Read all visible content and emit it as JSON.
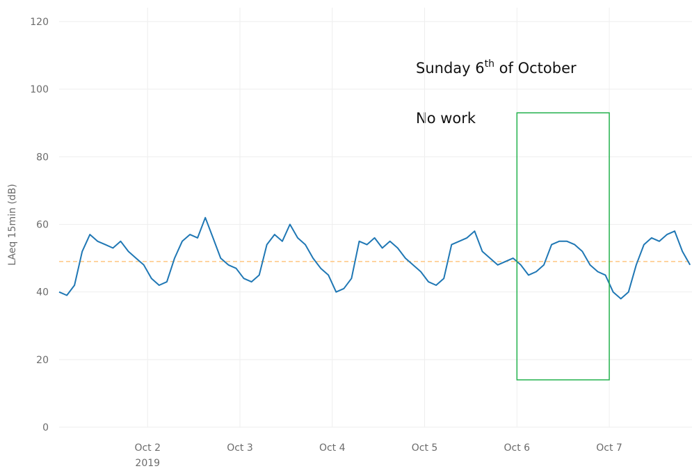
{
  "chart_data": {
    "type": "line",
    "y_label": "LAeq 15min (dB)",
    "ylim": [
      0,
      120
    ],
    "yticks": [
      0,
      20,
      40,
      60,
      80,
      100,
      120
    ],
    "xlim": [
      "2019-10-01T01:00",
      "2019-10-07T21:30"
    ],
    "xticks": [
      {
        "value": "2019-10-02T00:00",
        "label": "Oct 2"
      },
      {
        "value": "2019-10-03T00:00",
        "label": "Oct 3"
      },
      {
        "value": "2019-10-04T00:00",
        "label": "Oct 4"
      },
      {
        "value": "2019-10-05T00:00",
        "label": "Oct 5"
      },
      {
        "value": "2019-10-06T00:00",
        "label": "Oct 6"
      },
      {
        "value": "2019-10-07T00:00",
        "label": "Oct 7"
      }
    ],
    "x_year_label": "2019",
    "grid": true,
    "x": [
      "2019-10-01T01:00",
      "2019-10-01T03:00",
      "2019-10-01T05:00",
      "2019-10-01T07:00",
      "2019-10-01T09:00",
      "2019-10-01T11:00",
      "2019-10-01T13:00",
      "2019-10-01T15:00",
      "2019-10-01T17:00",
      "2019-10-01T19:00",
      "2019-10-01T21:00",
      "2019-10-01T23:00",
      "2019-10-02T01:00",
      "2019-10-02T03:00",
      "2019-10-02T05:00",
      "2019-10-02T07:00",
      "2019-10-02T09:00",
      "2019-10-02T11:00",
      "2019-10-02T13:00",
      "2019-10-02T15:00",
      "2019-10-02T17:00",
      "2019-10-02T19:00",
      "2019-10-02T21:00",
      "2019-10-02T23:00",
      "2019-10-03T01:00",
      "2019-10-03T03:00",
      "2019-10-03T05:00",
      "2019-10-03T07:00",
      "2019-10-03T09:00",
      "2019-10-03T11:00",
      "2019-10-03T13:00",
      "2019-10-03T15:00",
      "2019-10-03T17:00",
      "2019-10-03T19:00",
      "2019-10-03T21:00",
      "2019-10-03T23:00",
      "2019-10-04T01:00",
      "2019-10-04T03:00",
      "2019-10-04T05:00",
      "2019-10-04T07:00",
      "2019-10-04T09:00",
      "2019-10-04T11:00",
      "2019-10-04T13:00",
      "2019-10-04T15:00",
      "2019-10-04T17:00",
      "2019-10-04T19:00",
      "2019-10-04T21:00",
      "2019-10-04T23:00",
      "2019-10-05T01:00",
      "2019-10-05T03:00",
      "2019-10-05T05:00",
      "2019-10-05T07:00",
      "2019-10-05T09:00",
      "2019-10-05T11:00",
      "2019-10-05T13:00",
      "2019-10-05T15:00",
      "2019-10-05T17:00",
      "2019-10-05T19:00",
      "2019-10-05T21:00",
      "2019-10-05T23:00",
      "2019-10-06T01:00",
      "2019-10-06T03:00",
      "2019-10-06T05:00",
      "2019-10-06T07:00",
      "2019-10-06T09:00",
      "2019-10-06T11:00",
      "2019-10-06T13:00",
      "2019-10-06T15:00",
      "2019-10-06T17:00",
      "2019-10-06T19:00",
      "2019-10-06T21:00",
      "2019-10-06T23:00",
      "2019-10-07T01:00",
      "2019-10-07T03:00",
      "2019-10-07T05:00",
      "2019-10-07T07:00",
      "2019-10-07T09:00",
      "2019-10-07T11:00",
      "2019-10-07T13:00",
      "2019-10-07T15:00",
      "2019-10-07T17:00",
      "2019-10-07T19:00",
      "2019-10-07T21:00"
    ],
    "series": [
      {
        "color": "#ffc680",
        "dash": true,
        "x": [
          "2019-10-01T01:00",
          "2019-10-07T21:30"
        ],
        "values": [
          49,
          49
        ]
      },
      {
        "color": "#1f77b4",
        "values": [
          40,
          39,
          42,
          52,
          57,
          55,
          54,
          53,
          55,
          52,
          50,
          48,
          44,
          42,
          43,
          50,
          55,
          57,
          56,
          62,
          56,
          50,
          48,
          47,
          44,
          43,
          45,
          54,
          57,
          55,
          60,
          56,
          54,
          50,
          47,
          45,
          40,
          41,
          44,
          55,
          54,
          56,
          53,
          55,
          53,
          50,
          48,
          46,
          43,
          42,
          44,
          54,
          55,
          56,
          58,
          52,
          50,
          48,
          49,
          50,
          48,
          45,
          46,
          48,
          54,
          55,
          55,
          54,
          52,
          48,
          46,
          45,
          40,
          38,
          40,
          48,
          54,
          56,
          55,
          57,
          58,
          52,
          48
        ]
      }
    ],
    "highlight": {
      "x0": "2019-10-06T00:00",
      "x1": "2019-10-07T00:00",
      "y0": 14,
      "y1": 93,
      "color": "#22b14c"
    },
    "annotations": {
      "line1_main": "Sunday 6",
      "line1_sup": "th",
      "line1_rest": " of October",
      "line2": "No work"
    }
  }
}
